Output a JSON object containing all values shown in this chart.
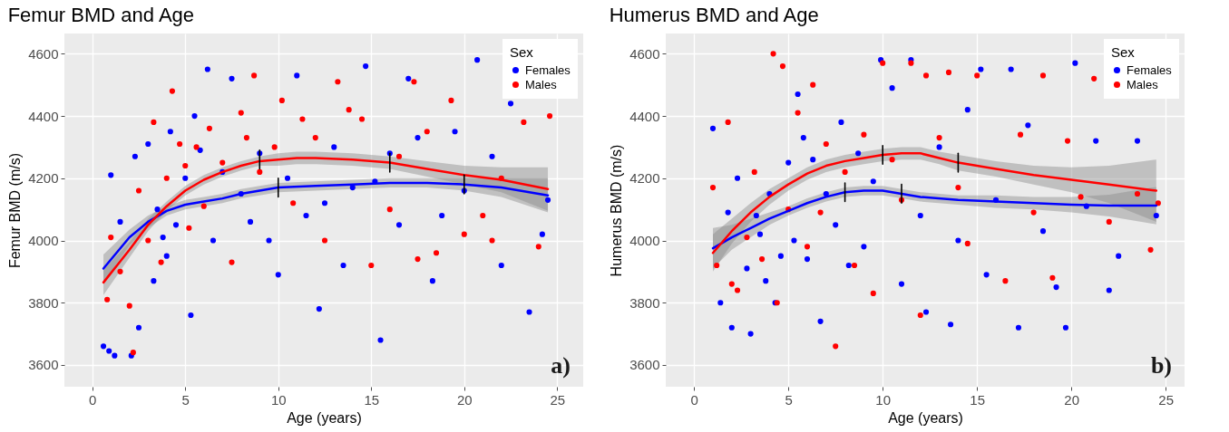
{
  "chart_data": [
    {
      "type": "scatter",
      "title": "Femur BMD and Age",
      "xlabel": "Age (years)",
      "ylabel": "Femur BMD (m/s)",
      "xlim": [
        -1.5,
        26.4
      ],
      "ylim": [
        3530,
        4665
      ],
      "xticks": [
        0,
        5,
        10,
        15,
        20,
        25
      ],
      "yticks": [
        3600,
        3800,
        4000,
        4200,
        4400,
        4600
      ],
      "grid": true,
      "legend": "top right",
      "legend_title": "Sex",
      "annotations": [
        "a)"
      ],
      "series": [
        {
          "name": "Females",
          "marker": "circle",
          "color": "#0000ff",
          "x": [
            0.6,
            0.9,
            1.2,
            2.1,
            1.0,
            1.5,
            2.3,
            2.5,
            3.0,
            3.3,
            3.5,
            3.8,
            4.0,
            4.2,
            4.5,
            5.0,
            5.3,
            5.5,
            5.8,
            6.2,
            6.5,
            7.0,
            7.5,
            8.0,
            8.5,
            9.0,
            9.5,
            10.0,
            10.5,
            11.0,
            11.5,
            12.2,
            12.5,
            13.0,
            13.5,
            14.0,
            14.7,
            15.2,
            15.5,
            16.0,
            16.5,
            17.0,
            17.5,
            18.3,
            18.8,
            19.5,
            20.0,
            20.7,
            21.5,
            22.0,
            22.5,
            23.5,
            24.2,
            24.5
          ],
          "values": [
            3660,
            3645,
            3630,
            3630,
            4210,
            4060,
            4270,
            3720,
            4310,
            3870,
            4100,
            4010,
            3950,
            4350,
            4050,
            4200,
            3760,
            4400,
            4290,
            4550,
            4000,
            4220,
            4520,
            4150,
            4060,
            4280,
            4000,
            3890,
            4200,
            4530,
            4080,
            3780,
            4120,
            4300,
            3920,
            4170,
            4560,
            4190,
            3680,
            4280,
            4050,
            4520,
            4330,
            3870,
            4080,
            4350,
            4160,
            4580,
            4270,
            3920,
            4440,
            3770,
            4020,
            4130
          ]
        },
        {
          "name": "Males",
          "marker": "circle",
          "color": "#ff0000",
          "x": [
            0.8,
            1.0,
            1.5,
            2.0,
            2.2,
            2.5,
            3.0,
            3.3,
            3.7,
            4.0,
            4.3,
            4.7,
            5.0,
            5.2,
            5.6,
            6.0,
            6.3,
            7.0,
            7.5,
            8.0,
            8.3,
            8.7,
            9.0,
            9.8,
            10.2,
            10.8,
            11.3,
            12.0,
            12.5,
            13.2,
            13.8,
            14.5,
            15.0,
            16.0,
            16.5,
            17.3,
            17.5,
            18.0,
            18.5,
            19.3,
            20.0,
            21.0,
            21.5,
            22.0,
            23.2,
            24.0,
            24.6
          ],
          "values": [
            3810,
            4010,
            3900,
            3790,
            3640,
            4160,
            4000,
            4380,
            3930,
            4200,
            4480,
            4310,
            4240,
            4040,
            4300,
            4110,
            4360,
            4250,
            3930,
            4410,
            4330,
            4530,
            4220,
            4300,
            4450,
            4120,
            4390,
            4330,
            4000,
            4510,
            4420,
            4390,
            3920,
            4100,
            4270,
            4510,
            3940,
            4350,
            3960,
            4450,
            4020,
            4080,
            4000,
            4200,
            4380,
            3980,
            4400
          ]
        },
        {
          "type": "line",
          "color": "#0000ff",
          "x": [
            0.6,
            2,
            3,
            4,
            5,
            6,
            7,
            8,
            9,
            10,
            12,
            14,
            16,
            18,
            20,
            22,
            24.5
          ],
          "values": [
            3910,
            4010,
            4060,
            4095,
            4115,
            4125,
            4135,
            4150,
            4160,
            4170,
            4175,
            4180,
            4185,
            4185,
            4180,
            4170,
            4145
          ],
          "lower": [
            3865,
            3985,
            4040,
            4080,
            4100,
            4110,
            4120,
            4135,
            4145,
            4155,
            4160,
            4165,
            4170,
            4170,
            4160,
            4140,
            4090
          ],
          "upper": [
            3955,
            4035,
            4080,
            4110,
            4130,
            4140,
            4150,
            4165,
            4175,
            4185,
            4190,
            4195,
            4200,
            4200,
            4200,
            4200,
            4200
          ]
        },
        {
          "type": "line",
          "color": "#ff0000",
          "x": [
            0.6,
            2,
            3,
            4,
            5,
            6,
            7,
            8,
            9,
            10,
            11,
            12,
            14,
            16,
            18,
            20,
            22,
            24.5
          ],
          "values": [
            3865,
            3970,
            4050,
            4110,
            4160,
            4195,
            4220,
            4240,
            4255,
            4260,
            4265,
            4265,
            4260,
            4250,
            4230,
            4210,
            4195,
            4165
          ],
          "lower": [
            3825,
            3945,
            4030,
            4095,
            4145,
            4180,
            4205,
            4225,
            4240,
            4240,
            4245,
            4245,
            4240,
            4230,
            4205,
            4180,
            4155,
            4095
          ],
          "upper": [
            3905,
            3995,
            4070,
            4125,
            4175,
            4210,
            4235,
            4255,
            4270,
            4280,
            4285,
            4285,
            4280,
            4270,
            4255,
            4240,
            4235,
            4235
          ]
        },
        {
          "type": "line",
          "color": "#000000",
          "x": [
            9,
            9
          ],
          "values": [
            4230,
            4290
          ]
        },
        {
          "type": "line",
          "color": "#000000",
          "x": [
            10,
            10
          ],
          "values": [
            4140,
            4200
          ]
        },
        {
          "type": "line",
          "color": "#000000",
          "x": [
            16,
            16
          ],
          "values": [
            4220,
            4280
          ]
        },
        {
          "type": "line",
          "color": "#000000",
          "x": [
            20,
            20
          ],
          "values": [
            4150,
            4210
          ]
        }
      ]
    },
    {
      "type": "scatter",
      "title": "Humerus BMD and Age",
      "xlabel": "Age (years)",
      "ylabel": "Humerus BMD (m/s)",
      "xlim": [
        -1.5,
        26.0
      ],
      "ylim": [
        3530,
        4665
      ],
      "xticks": [
        0,
        5,
        10,
        15,
        20,
        25
      ],
      "yticks": [
        3600,
        3800,
        4000,
        4200,
        4400,
        4600
      ],
      "grid": true,
      "legend": "top right",
      "legend_title": "Sex",
      "annotations": [
        "b)"
      ],
      "series": [
        {
          "name": "Females",
          "marker": "circle",
          "color": "#0000ff",
          "x": [
            1.0,
            1.4,
            1.8,
            2.0,
            2.3,
            2.8,
            3.0,
            3.3,
            3.5,
            3.8,
            4.0,
            4.3,
            4.6,
            5.0,
            5.3,
            5.5,
            5.8,
            6.0,
            6.3,
            6.7,
            7.0,
            7.5,
            7.8,
            8.2,
            8.7,
            9.0,
            9.5,
            9.9,
            10.5,
            11.0,
            11.5,
            12.0,
            12.3,
            13.0,
            13.6,
            14.0,
            14.5,
            15.2,
            15.5,
            16.0,
            16.8,
            17.2,
            17.7,
            18.5,
            19.2,
            19.7,
            20.2,
            20.8,
            21.3,
            22.0,
            22.5,
            23.5,
            24.5
          ],
          "values": [
            4360,
            3800,
            4090,
            3720,
            4200,
            3910,
            3700,
            4080,
            4020,
            3870,
            4150,
            3800,
            3950,
            4250,
            4000,
            4470,
            4330,
            3940,
            4260,
            3740,
            4150,
            4050,
            4380,
            3920,
            4280,
            3980,
            4190,
            4580,
            4490,
            3860,
            4580,
            4080,
            3770,
            4300,
            3730,
            4000,
            4420,
            4550,
            3890,
            4130,
            4550,
            3720,
            4370,
            4030,
            3850,
            3720,
            4570,
            4110,
            4320,
            3840,
            3950,
            4320,
            4080
          ]
        },
        {
          "name": "Males",
          "marker": "circle",
          "color": "#ff0000",
          "x": [
            1.0,
            1.2,
            1.8,
            2.0,
            2.3,
            2.8,
            3.2,
            3.6,
            4.2,
            4.4,
            4.7,
            5.0,
            5.5,
            6.0,
            6.3,
            6.7,
            7.0,
            7.5,
            8.0,
            8.5,
            9.0,
            9.5,
            10.0,
            10.5,
            11.0,
            11.5,
            12.0,
            12.3,
            13.0,
            13.5,
            14.0,
            14.5,
            15.0,
            16.5,
            17.3,
            18.0,
            18.5,
            19.0,
            19.8,
            20.5,
            21.2,
            22.0,
            23.5,
            24.2,
            24.6
          ],
          "values": [
            4170,
            3920,
            4380,
            3860,
            3840,
            4010,
            4220,
            3940,
            4600,
            3800,
            4560,
            4100,
            4410,
            3980,
            4500,
            4090,
            4310,
            3660,
            4220,
            3920,
            4340,
            3830,
            4570,
            4260,
            4130,
            4570,
            3760,
            4530,
            4330,
            4540,
            4170,
            3990,
            4530,
            3870,
            4340,
            4090,
            4530,
            3880,
            4320,
            4140,
            4520,
            4060,
            4150,
            3970,
            4120
          ]
        },
        {
          "type": "line",
          "color": "#0000ff",
          "x": [
            1,
            2,
            3,
            4,
            5,
            6,
            7,
            8,
            9,
            10,
            11,
            12,
            14,
            16,
            18,
            20,
            22,
            24.5
          ],
          "values": [
            3975,
            4010,
            4040,
            4070,
            4095,
            4120,
            4140,
            4155,
            4160,
            4160,
            4150,
            4140,
            4130,
            4125,
            4120,
            4115,
            4112,
            4112
          ],
          "lower": [
            3910,
            3970,
            4010,
            4050,
            4080,
            4105,
            4125,
            4140,
            4145,
            4145,
            4135,
            4125,
            4115,
            4105,
            4100,
            4090,
            4077,
            4052
          ],
          "upper": [
            4040,
            4050,
            4070,
            4090,
            4110,
            4135,
            4155,
            4170,
            4175,
            4175,
            4165,
            4155,
            4145,
            4145,
            4140,
            4140,
            4147,
            4172
          ]
        },
        {
          "type": "line",
          "color": "#ff0000",
          "x": [
            1,
            2,
            3,
            4,
            5,
            6,
            7,
            8,
            9,
            10,
            11,
            12,
            13,
            14,
            16,
            18,
            20,
            22,
            24.5
          ],
          "values": [
            3960,
            4030,
            4090,
            4140,
            4180,
            4215,
            4240,
            4255,
            4265,
            4275,
            4280,
            4280,
            4265,
            4250,
            4230,
            4210,
            4195,
            4180,
            4160
          ],
          "lower": [
            3900,
            3990,
            4060,
            4115,
            4160,
            4195,
            4220,
            4235,
            4245,
            4255,
            4260,
            4260,
            4245,
            4225,
            4205,
            4180,
            4155,
            4120,
            4060
          ],
          "upper": [
            4020,
            4070,
            4120,
            4165,
            4200,
            4235,
            4260,
            4275,
            4285,
            4295,
            4300,
            4300,
            4285,
            4275,
            4255,
            4240,
            4235,
            4240,
            4260
          ]
        },
        {
          "type": "line",
          "color": "#000000",
          "x": [
            10,
            10
          ],
          "values": [
            4245,
            4305
          ]
        },
        {
          "type": "line",
          "color": "#000000",
          "x": [
            14,
            14
          ],
          "values": [
            4220,
            4280
          ]
        },
        {
          "type": "line",
          "color": "#000000",
          "x": [
            8,
            8
          ],
          "values": [
            4125,
            4185
          ]
        },
        {
          "type": "line",
          "color": "#000000",
          "x": [
            11,
            11
          ],
          "values": [
            4120,
            4180
          ]
        }
      ]
    }
  ]
}
